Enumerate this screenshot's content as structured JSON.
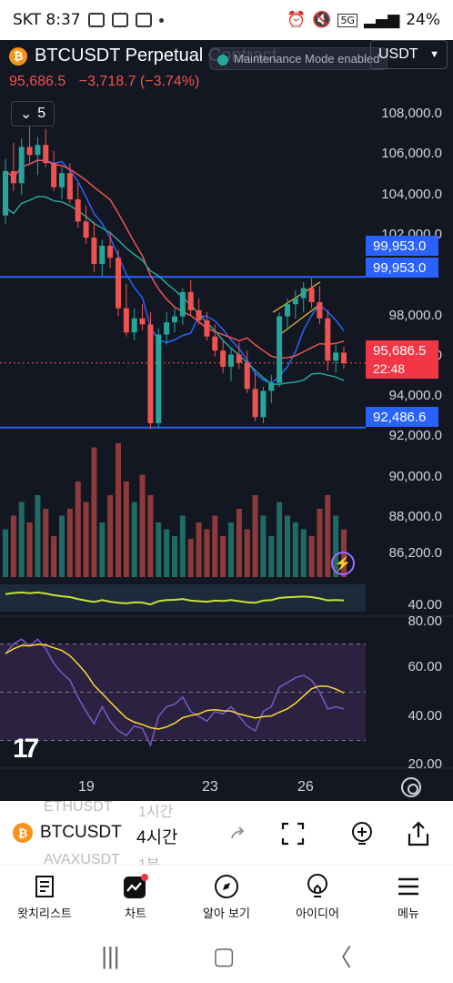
{
  "status_bar": {
    "carrier_time": "SKT 8:37",
    "battery": "24%",
    "network": "5G"
  },
  "header": {
    "title": "BTCUSDT Perpetual Contract",
    "badge": "₿",
    "replay_text": "Maintenance Mode enabled",
    "currency": "USDT",
    "last_price": "95,686.5",
    "change": "−3,718.7 (−3.74%)",
    "indicator_count": "5"
  },
  "price_axis": [
    "108,000.0",
    "106,000.0",
    "104,000.0",
    "102,000.0",
    "98,000.0",
    "96,000.0",
    "94,000.0",
    "92,000.0",
    "90,000.0",
    "88,000.0",
    "86,200.0"
  ],
  "tags": {
    "resistance": "99,953.0",
    "resistance2": "99,953.0",
    "current": "95,686.5",
    "countdown": "22:48",
    "support": "92,486.6"
  },
  "oscillator_axis": {
    "top": "40.00",
    "rsi": [
      "80.00",
      "60.00",
      "40.00",
      "20.00"
    ]
  },
  "time_axis": [
    "19",
    "23",
    "26"
  ],
  "colors": {
    "bg": "#131722",
    "up": "#26a69a",
    "down": "#ef5350",
    "blue_line": "#2962ff",
    "rsi": "#7e57c2"
  },
  "chart_data": {
    "type": "candlestick",
    "title": "BTCUSDT Perpetual Contract",
    "ylim": [
      86200,
      109000
    ],
    "interval": "4시간",
    "candles": [
      [
        103000,
        105800,
        102600,
        105200
      ],
      [
        105200,
        106600,
        104200,
        104600
      ],
      [
        104600,
        106800,
        104000,
        106400
      ],
      [
        106400,
        107400,
        105600,
        106000
      ],
      [
        106000,
        106900,
        105000,
        106500
      ],
      [
        106500,
        107300,
        105400,
        105600
      ],
      [
        105600,
        106200,
        104200,
        104400
      ],
      [
        104400,
        105400,
        103800,
        105100
      ],
      [
        105100,
        105600,
        103600,
        103800
      ],
      [
        103800,
        104600,
        102400,
        102700
      ],
      [
        102700,
        103500,
        101600,
        101900
      ],
      [
        101900,
        102700,
        100200,
        100600
      ],
      [
        100600,
        101800,
        100000,
        101500
      ],
      [
        101500,
        102200,
        100400,
        100900
      ],
      [
        100900,
        101300,
        98000,
        98400
      ],
      [
        98400,
        99600,
        97000,
        97200
      ],
      [
        97200,
        98400,
        96800,
        97900
      ],
      [
        97900,
        98600,
        97300,
        97600
      ],
      [
        97600,
        98200,
        92400,
        92700
      ],
      [
        92700,
        97400,
        92500,
        97100
      ],
      [
        97100,
        98200,
        96600,
        97700
      ],
      [
        97700,
        98400,
        97200,
        98000
      ],
      [
        98000,
        99400,
        97600,
        99200
      ],
      [
        99200,
        99800,
        98000,
        98300
      ],
      [
        98300,
        98900,
        97600,
        97800
      ],
      [
        97800,
        98200,
        96800,
        97000
      ],
      [
        97000,
        97600,
        96000,
        96300
      ],
      [
        96300,
        96800,
        95200,
        95500
      ],
      [
        95500,
        96400,
        94800,
        96100
      ],
      [
        96100,
        96700,
        95400,
        95700
      ],
      [
        95700,
        96300,
        94200,
        94400
      ],
      [
        94400,
        95200,
        92800,
        93000
      ],
      [
        93000,
        94500,
        92700,
        94300
      ],
      [
        94300,
        95100,
        93700,
        94700
      ],
      [
        94700,
        98200,
        94500,
        98000
      ],
      [
        98000,
        98900,
        97300,
        98600
      ],
      [
        98600,
        99300,
        97900,
        98900
      ],
      [
        98900,
        99700,
        98200,
        99400
      ],
      [
        99400,
        99900,
        98400,
        98700
      ],
      [
        98700,
        99500,
        97600,
        97900
      ],
      [
        97900,
        98300,
        95300,
        95800
      ],
      [
        95800,
        96600,
        95200,
        96200
      ],
      [
        96200,
        96500,
        95400,
        95686
      ]
    ],
    "volume": [
      0.35,
      0.45,
      0.55,
      0.4,
      0.6,
      0.5,
      0.3,
      0.45,
      0.5,
      0.7,
      0.55,
      0.95,
      0.4,
      0.6,
      0.98,
      0.7,
      0.55,
      0.75,
      0.6,
      0.4,
      0.35,
      0.3,
      0.45,
      0.28,
      0.4,
      0.35,
      0.45,
      0.3,
      0.4,
      0.5,
      0.35,
      0.6,
      0.45,
      0.3,
      0.55,
      0.45,
      0.4,
      0.35,
      0.3,
      0.5,
      0.6,
      0.45,
      0.35
    ],
    "rsi": [
      66,
      70,
      72,
      69,
      72,
      68,
      62,
      58,
      55,
      48,
      42,
      37,
      44,
      38,
      34,
      32,
      36,
      35,
      28,
      40,
      44,
      45,
      48,
      42,
      40,
      38,
      42,
      41,
      44,
      40,
      36,
      34,
      42,
      44,
      52,
      54,
      56,
      57,
      55,
      50,
      43,
      44,
      43
    ]
  },
  "bottom_toolbar": {
    "symbol": "BTCUSDT",
    "interval": "4시간",
    "ghost_prev": "ETHUSDT",
    "ghost_prev_interval": "1시간",
    "ghost_next": "AVAXUSDT",
    "ghost_next_interval": "1분"
  },
  "nav": [
    {
      "label": "왓치리스트",
      "icon": "watchlist-icon"
    },
    {
      "label": "차트",
      "icon": "chart-icon"
    },
    {
      "label": "알아 보기",
      "icon": "compass-icon"
    },
    {
      "label": "아이디어",
      "icon": "idea-icon"
    },
    {
      "label": "메뉴",
      "icon": "menu-icon"
    }
  ]
}
